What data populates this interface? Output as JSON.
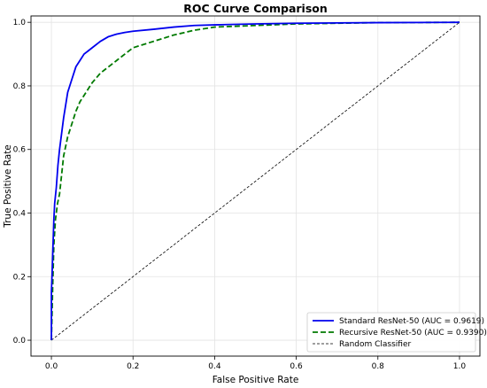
{
  "chart_data": {
    "type": "line",
    "title": "ROC Curve Comparison",
    "xlabel": "False Positive Rate",
    "ylabel": "True Positive Rate",
    "xlim": [
      -0.05,
      1.05
    ],
    "ylim": [
      -0.05,
      1.02
    ],
    "xticks": [
      "0.0",
      "0.2",
      "0.4",
      "0.6",
      "0.8",
      "1.0"
    ],
    "yticks": [
      "0.0",
      "0.2",
      "0.4",
      "0.6",
      "0.8",
      "1.0"
    ],
    "grid": true,
    "legend_position": "bottom-right",
    "series": [
      {
        "name": "Standard ResNet-50 (AUC = 0.9619)",
        "color": "#0000ee",
        "style": "solid",
        "x": [
          0.0,
          0.0,
          0.002,
          0.004,
          0.006,
          0.008,
          0.012,
          0.016,
          0.02,
          0.025,
          0.03,
          0.035,
          0.04,
          0.05,
          0.06,
          0.07,
          0.08,
          0.09,
          0.1,
          0.12,
          0.14,
          0.16,
          0.18,
          0.2,
          0.25,
          0.3,
          0.35,
          0.4,
          0.5,
          0.6,
          0.8,
          1.0
        ],
        "y": [
          0.0,
          0.15,
          0.22,
          0.3,
          0.38,
          0.43,
          0.48,
          0.55,
          0.6,
          0.65,
          0.7,
          0.74,
          0.78,
          0.82,
          0.86,
          0.88,
          0.9,
          0.91,
          0.92,
          0.94,
          0.955,
          0.963,
          0.968,
          0.972,
          0.978,
          0.985,
          0.99,
          0.992,
          0.995,
          0.997,
          0.999,
          1.0
        ]
      },
      {
        "name": "Recursive ResNet-50 (AUC = 0.9390)",
        "color": "#007a00",
        "style": "dashed",
        "x": [
          0.0,
          0.003,
          0.006,
          0.01,
          0.015,
          0.02,
          0.025,
          0.03,
          0.04,
          0.05,
          0.06,
          0.07,
          0.08,
          0.09,
          0.1,
          0.12,
          0.14,
          0.16,
          0.18,
          0.2,
          0.25,
          0.3,
          0.35,
          0.4,
          0.5,
          0.6,
          0.8,
          1.0
        ],
        "y": [
          0.0,
          0.16,
          0.3,
          0.38,
          0.43,
          0.46,
          0.52,
          0.58,
          0.64,
          0.68,
          0.72,
          0.75,
          0.77,
          0.79,
          0.81,
          0.84,
          0.86,
          0.88,
          0.9,
          0.92,
          0.94,
          0.96,
          0.975,
          0.985,
          0.99,
          0.995,
          0.999,
          1.0
        ]
      },
      {
        "name": "Random Classifier",
        "color": "#000000",
        "style": "dashed-thin",
        "x": [
          0.0,
          1.0
        ],
        "y": [
          0.0,
          1.0
        ]
      }
    ]
  }
}
